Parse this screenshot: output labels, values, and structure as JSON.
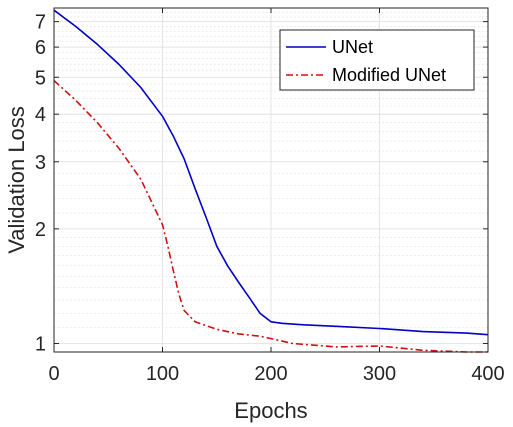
{
  "chart_data": {
    "type": "line",
    "xlabel": "Epochs",
    "ylabel": "Validation Loss",
    "xlim": [
      0,
      400
    ],
    "ylim": [
      0.95,
      7.6
    ],
    "yscale": "log",
    "grid": true,
    "minor_grid": true,
    "legend_position": "top-right",
    "xticks": [
      0,
      100,
      200,
      300,
      400
    ],
    "xtick_labels": [
      "0",
      "100",
      "200",
      "300",
      "400"
    ],
    "yticks": [
      1,
      2,
      3,
      4,
      5,
      6,
      7
    ],
    "ytick_labels": [
      "1",
      "2",
      "3",
      "4",
      "5",
      "6",
      "7"
    ],
    "series": [
      {
        "name": "UNet",
        "color": "#0000c8",
        "style": "solid",
        "x": [
          0,
          20,
          40,
          60,
          80,
          100,
          110,
          120,
          130,
          140,
          150,
          160,
          170,
          180,
          190,
          200,
          210,
          230,
          260,
          300,
          340,
          380,
          400
        ],
        "y": [
          7.5,
          6.8,
          6.1,
          5.4,
          4.7,
          3.95,
          3.5,
          3.05,
          2.55,
          2.15,
          1.8,
          1.6,
          1.45,
          1.32,
          1.2,
          1.14,
          1.13,
          1.12,
          1.11,
          1.095,
          1.075,
          1.065,
          1.055
        ]
      },
      {
        "name": "Modified UNet",
        "color": "#d01010",
        "style": "dashdot",
        "x": [
          0,
          20,
          40,
          60,
          80,
          100,
          105,
          110,
          115,
          120,
          130,
          150,
          170,
          190,
          200,
          220,
          260,
          300,
          340,
          380,
          400
        ],
        "y": [
          4.9,
          4.35,
          3.8,
          3.25,
          2.7,
          2.05,
          1.8,
          1.55,
          1.35,
          1.22,
          1.14,
          1.09,
          1.06,
          1.045,
          1.03,
          1.0,
          0.98,
          0.985,
          0.96,
          0.945,
          0.94
        ]
      }
    ]
  }
}
